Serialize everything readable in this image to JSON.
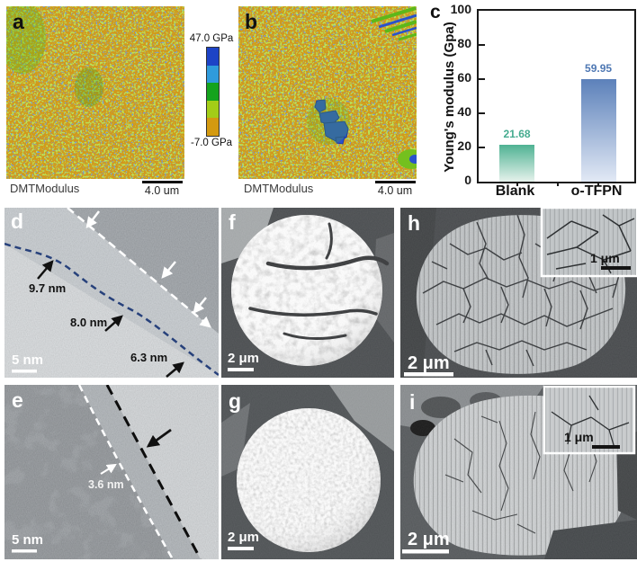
{
  "figure_type": "multi-panel materials characterization figure",
  "panels": {
    "a": {
      "label": "a",
      "map_label": "DMTModulus",
      "scale": "4.0 um"
    },
    "b": {
      "label": "b",
      "map_label": "DMTModulus",
      "scale": "4.0 um"
    },
    "colorbar": {
      "max": "47.0 GPa",
      "min": "-7.0 GPa",
      "colors": [
        "#1d43c6",
        "#2f9bdc",
        "#14a31d",
        "#a3cd17",
        "#d49a10"
      ]
    },
    "c": {
      "label": "c"
    },
    "d": {
      "label": "d",
      "scale": "5 nm",
      "m1": "9.7 nm",
      "m2": "8.0 nm",
      "m3": "6.3 nm"
    },
    "e": {
      "label": "e",
      "scale": "5 nm",
      "m1": "3.6 nm"
    },
    "f": {
      "label": "f",
      "scale": "2 μm"
    },
    "g": {
      "label": "g",
      "scale": "2 μm"
    },
    "h": {
      "label": "h",
      "scale": "2 μm",
      "inset_scale": "1 μm"
    },
    "i": {
      "label": "i",
      "scale": "2 μm",
      "inset_scale": "1 μm"
    }
  },
  "chart_data": {
    "type": "bar",
    "title": "",
    "categories": [
      "Blank",
      "o-TFPN"
    ],
    "values": [
      21.68,
      59.95
    ],
    "value_labels": [
      "21.68",
      "59.95"
    ],
    "xlabel": "",
    "ylabel": "Young's modulus (Gpa)",
    "ylim": [
      0,
      100
    ],
    "yticks": [
      0,
      20,
      40,
      60,
      80,
      100
    ],
    "grid": false,
    "legend": "none",
    "bar_gradient_top": [
      "#4fb293",
      "#5c81ba"
    ],
    "bar_gradient_bottom": [
      "#e6f2ec",
      "#e2e9f5"
    ],
    "value_label_colors": [
      "#45ab8f",
      "#4f78b3"
    ]
  }
}
